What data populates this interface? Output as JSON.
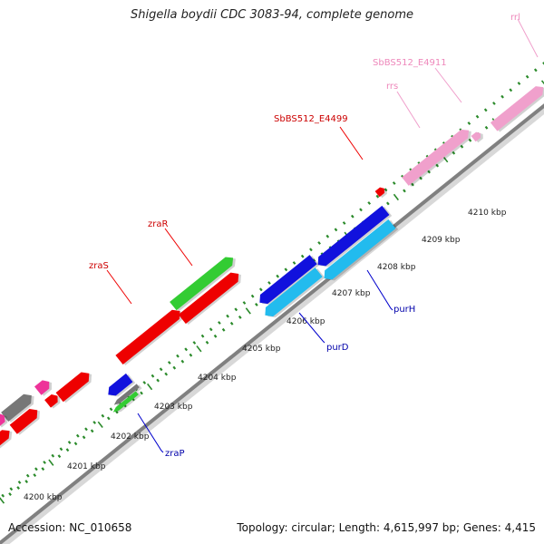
{
  "title": "Shigella boydii CDC 3083-94, complete genome",
  "footer": {
    "accession": "Accession: NC_010658",
    "summary": "Topology: circular; Length: 4,615,997 bp; Genes: 4,415"
  },
  "colors": {
    "background": "#ffffff",
    "backbone": "#808080",
    "ticks": "#2a8a2a",
    "red_gene": "#ee0000",
    "green_gene": "#33cc33",
    "blue_gene": "#1111dd",
    "cyan_gene": "#22bbee",
    "pink_gene": "#f0a0cc",
    "magenta_gene": "#ee3399",
    "gray_gene": "#777777",
    "rna_label": "#ee88bb",
    "red_label": "#cc0000",
    "blue_label": "#0000aa"
  },
  "scale_labels": [
    "4200 kbp",
    "4201 kbp",
    "4202 kbp",
    "4203 kbp",
    "4204 kbp",
    "4205 kbp",
    "4206 kbp",
    "4207 kbp",
    "4208 kbp",
    "4209 kbp",
    "4210 kbp"
  ],
  "gene_labels": {
    "zraS": "zraS",
    "zraR": "zraR",
    "zraP": "zraP",
    "purD": "purD",
    "purH": "purH",
    "SbBS512_E4499": "SbBS512_E4499",
    "rrs": "rrs",
    "SbBS512_E4911": "SbBS512_E4911",
    "rrl": "rrl"
  }
}
